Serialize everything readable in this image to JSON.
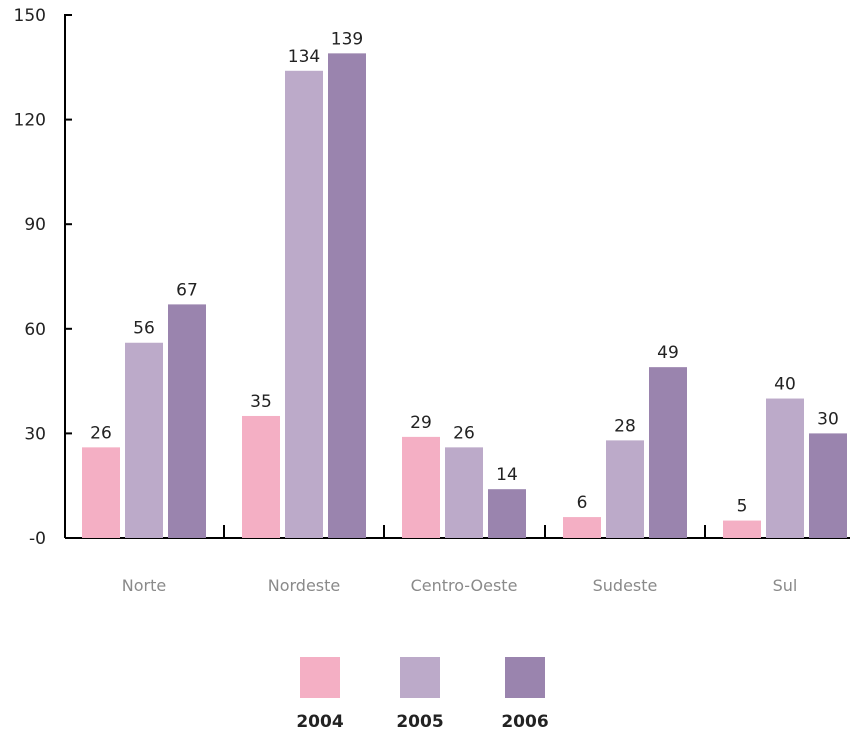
{
  "chart_data": {
    "type": "bar",
    "categories": [
      "Norte",
      "Nordeste",
      "Centro-Oeste",
      "Sudeste",
      "Sul"
    ],
    "series": [
      {
        "name": "2004",
        "color": "#f4afc4",
        "values": [
          26,
          35,
          29,
          6,
          5
        ]
      },
      {
        "name": "2005",
        "color": "#bcaac9",
        "values": [
          56,
          134,
          26,
          28,
          40
        ]
      },
      {
        "name": "2006",
        "color": "#9a84ae",
        "values": [
          67,
          139,
          14,
          49,
          30
        ]
      }
    ],
    "title": "",
    "xlabel": "",
    "ylabel": "",
    "ylim": [
      0,
      150
    ],
    "yticks": [
      {
        "value": 0,
        "label": "-0"
      },
      {
        "value": 30,
        "label": "30"
      },
      {
        "value": 60,
        "label": "60"
      },
      {
        "value": 90,
        "label": "90"
      },
      {
        "value": 120,
        "label": "120"
      },
      {
        "value": 150,
        "label": "150"
      }
    ],
    "grid": false,
    "legend_position": "bottom"
  }
}
